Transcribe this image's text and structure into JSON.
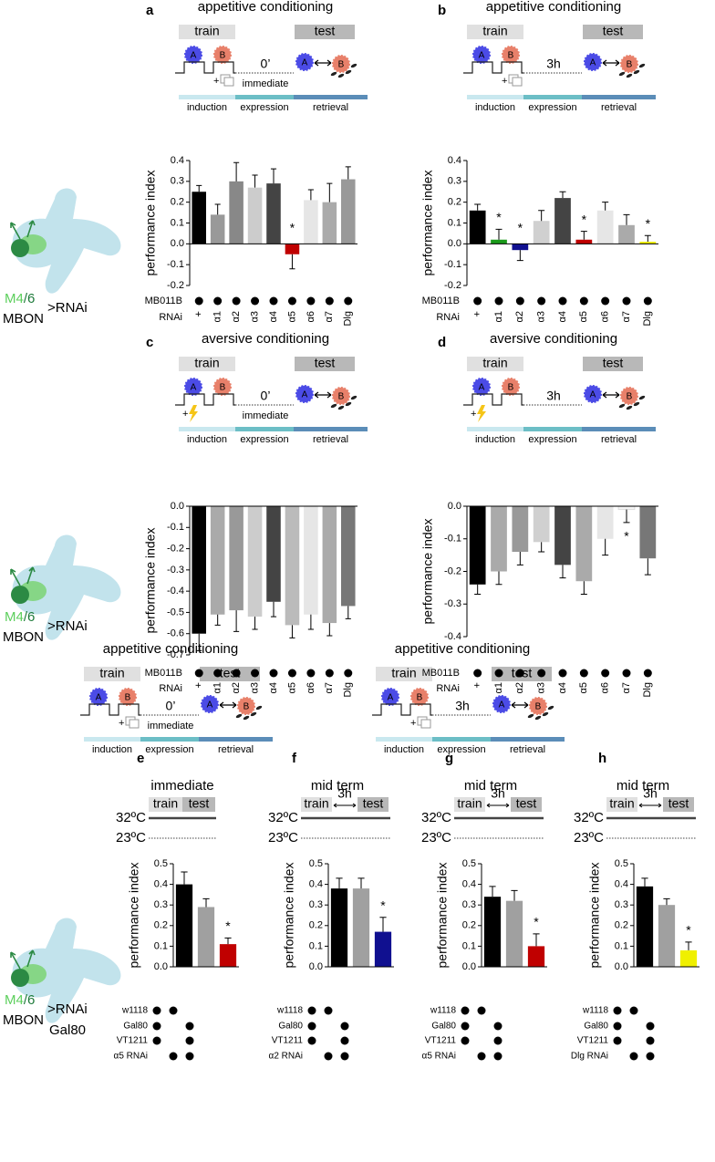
{
  "protocols": [
    {
      "title": "appetitive conditioning",
      "train": "train",
      "test": "test",
      "odor_a": "A",
      "odor_b": "B",
      "plus": "+",
      "delay": "0’",
      "timing": "immediate",
      "shock": false,
      "phases": [
        "induction",
        "expression",
        "retrieval"
      ]
    },
    {
      "title": "appetitive conditioning",
      "train": "train",
      "test": "test",
      "odor_a": "A",
      "odor_b": "B",
      "plus": "+",
      "delay": "3h",
      "shock": false,
      "phases": [
        "induction",
        "expression",
        "retrieval"
      ]
    },
    {
      "title": "aversive conditioning",
      "train": "train",
      "test": "test",
      "odor_a": "A",
      "odor_b": "B",
      "plus": "+",
      "delay": "0’",
      "timing": "immediate",
      "shock": true,
      "phases": [
        "induction",
        "expression",
        "retrieval"
      ]
    },
    {
      "title": "aversive conditioning",
      "train": "train",
      "test": "test",
      "odor_a": "A",
      "odor_b": "B",
      "plus": "+",
      "delay": "3h",
      "shock": true,
      "phases": [
        "induction",
        "expression",
        "retrieval"
      ]
    },
    {
      "title": "appetitive conditioning",
      "train": "train",
      "test": "test",
      "odor_a": "A",
      "odor_b": "B",
      "plus": "+",
      "delay": "0’",
      "timing": "immediate",
      "shock": false,
      "phases": [
        "induction",
        "expression",
        "retrieval"
      ]
    },
    {
      "title": "appetitive conditioning",
      "train": "train",
      "test": "test",
      "odor_a": "A",
      "odor_b": "B",
      "plus": "+",
      "delay": "3h",
      "shock": false,
      "phases": [
        "induction",
        "expression",
        "retrieval"
      ]
    }
  ],
  "mbon_labels": [
    {
      "m": "M4",
      "n": "/6",
      "mbon": "MBON",
      "driver": ">RNAi"
    },
    {
      "m": "M4",
      "n": "/6",
      "mbon": "MBON",
      "driver": ">RNAi"
    },
    {
      "m": "M4",
      "n": "/6",
      "mbon": "MBON",
      "driver": ">RNAi",
      "extra": "Gal80"
    }
  ],
  "chart_data": [
    {
      "type": "bar",
      "label": "a",
      "ylabel": "performance index",
      "marker": "*",
      "rnai_label": "RNAi",
      "categories": [
        "+",
        "α1",
        "α2",
        "α3",
        "α4",
        "α5",
        "α6",
        "α7",
        "Dlg"
      ],
      "values": [
        0.25,
        0.14,
        0.3,
        0.27,
        0.29,
        -0.05,
        0.21,
        0.2,
        0.31
      ],
      "errors": [
        0.03,
        0.05,
        0.09,
        0.06,
        0.07,
        0.07,
        0.05,
        0.09,
        0.06
      ],
      "colors": [
        "#000000",
        "#999999",
        "#888888",
        "#cccccc",
        "#444444",
        "#c00000",
        "#e6e6e6",
        "#aaaaaa",
        "#999999"
      ],
      "significant": [
        false,
        false,
        false,
        false,
        false,
        true,
        false,
        false,
        false
      ],
      "ylim": [
        -0.2,
        0.4
      ],
      "yticks": [
        0.4,
        0.3,
        0.2,
        0.1,
        {
          "value": 0,
          "label": "0.0"
        },
        -0.1,
        -0.2
      ],
      "genotype_rows": [
        {
          "label": "MB011B",
          "dots": [
            true,
            true,
            true,
            true,
            true,
            true,
            true,
            true,
            true
          ]
        }
      ]
    },
    {
      "type": "bar",
      "label": "b",
      "ylabel": "performance index",
      "marker": "*",
      "rnai_label": "RNAi",
      "categories": [
        "+",
        "α1",
        "α2",
        "α3",
        "α4",
        "α5",
        "α6",
        "α7",
        "Dlg"
      ],
      "values": [
        0.16,
        0.02,
        -0.03,
        0.11,
        0.22,
        0.02,
        0.16,
        0.09,
        0.01
      ],
      "errors": [
        0.03,
        0.05,
        0.05,
        0.05,
        0.03,
        0.04,
        0.04,
        0.05,
        0.03
      ],
      "colors": [
        "#000000",
        "#1a9a1a",
        "#101090",
        "#d0d0d0",
        "#444444",
        "#c00000",
        "#e6e6e6",
        "#aaaaaa",
        "#f0f000"
      ],
      "significant": [
        false,
        true,
        true,
        false,
        false,
        true,
        false,
        false,
        true
      ],
      "ylim": [
        -0.2,
        0.4
      ],
      "yticks": [
        0.4,
        0.3,
        0.2,
        0.1,
        {
          "value": 0,
          "label": "0.0"
        },
        -0.1,
        -0.2
      ],
      "genotype_rows": [
        {
          "label": "MB011B",
          "dots": [
            true,
            true,
            true,
            true,
            true,
            true,
            true,
            true,
            true
          ]
        }
      ]
    },
    {
      "type": "bar",
      "label": "c",
      "ylabel": "performance index",
      "marker": "*",
      "rnai_label": "RNAi",
      "categories": [
        "+",
        "α1",
        "α2",
        "α3",
        "α4",
        "α5",
        "α6",
        "α7",
        "Dlg"
      ],
      "values": [
        -0.6,
        -0.51,
        -0.49,
        -0.52,
        -0.45,
        -0.56,
        -0.51,
        -0.55,
        -0.47
      ],
      "errors": [
        0.08,
        0.05,
        0.1,
        0.06,
        0.07,
        0.06,
        0.07,
        0.06,
        0.06
      ],
      "colors": [
        "#000000",
        "#aaaaaa",
        "#999999",
        "#cccccc",
        "#444444",
        "#bbbbbb",
        "#e6e6e6",
        "#aaaaaa",
        "#777777"
      ],
      "significant": [
        false,
        false,
        false,
        false,
        false,
        false,
        false,
        false,
        false
      ],
      "ylim": [
        -0.7,
        0
      ],
      "yticks": [
        {
          "value": 0,
          "label": "0.0"
        },
        -0.1,
        -0.2,
        -0.3,
        -0.4,
        -0.5,
        -0.6,
        -0.7
      ],
      "genotype_rows": [
        {
          "label": "MB011B",
          "dots": [
            true,
            true,
            true,
            true,
            true,
            true,
            true,
            true,
            true
          ]
        }
      ]
    },
    {
      "type": "bar",
      "label": "d",
      "ylabel": "performance index",
      "marker": "*",
      "rnai_label": "RNAi",
      "categories": [
        "+",
        "α1",
        "α2",
        "α3",
        "α4",
        "α5",
        "α6",
        "α7",
        "Dlg"
      ],
      "values": [
        -0.24,
        -0.2,
        -0.14,
        -0.11,
        -0.18,
        -0.23,
        -0.1,
        -0.01,
        -0.16
      ],
      "errors": [
        0.03,
        0.04,
        0.04,
        0.03,
        0.04,
        0.04,
        0.05,
        0.04,
        0.05
      ],
      "colors": [
        "#000000",
        "#aaaaaa",
        "#999999",
        "#d0d0d0",
        "#444444",
        "#aaaaaa",
        "#e6e6e6",
        "#f4f4f4",
        "#777777"
      ],
      "significant": [
        false,
        false,
        false,
        false,
        false,
        false,
        false,
        true,
        false
      ],
      "ylim": [
        -0.4,
        0
      ],
      "yticks": [
        {
          "value": 0,
          "label": "0.0"
        },
        -0.1,
        -0.2,
        -0.3,
        -0.4
      ],
      "genotype_rows": [
        {
          "label": "MB011B",
          "dots": [
            true,
            true,
            true,
            true,
            true,
            true,
            true,
            true,
            true
          ]
        }
      ]
    },
    {
      "type": "bar",
      "label": "e",
      "subtitle": "immediate",
      "ylabel": "performance index",
      "marker": "*",
      "temperature": {
        "train": "train",
        "test": "test",
        "high": "32ºC",
        "low": "23ºC"
      },
      "values": [
        0.4,
        0.29,
        0.11
      ],
      "errors": [
        0.06,
        0.04,
        0.03
      ],
      "colors": [
        "#000000",
        "#a0a0a0",
        "#c00000"
      ],
      "significant": [
        false,
        false,
        true
      ],
      "ylim": [
        0,
        0.5
      ],
      "yticks": [
        {
          "value": 0,
          "label": "0.0"
        },
        0.1,
        0.2,
        0.3,
        0.4,
        0.5
      ],
      "genotype_rows": [
        {
          "label": "w1118",
          "dots": [
            true,
            true,
            false
          ]
        },
        {
          "label": "Gal80",
          "dots": [
            true,
            false,
            true
          ]
        },
        {
          "label": "VT1211",
          "dots": [
            true,
            false,
            true
          ]
        },
        {
          "label": "α5 RNAi",
          "dots": [
            false,
            true,
            true
          ]
        }
      ]
    },
    {
      "type": "bar",
      "label": "f",
      "subtitle": "mid term",
      "ylabel": "performance index",
      "marker": "*",
      "temperature": {
        "train": "train",
        "test": "test",
        "interval": "3h",
        "high": "32ºC",
        "low": "23ºC"
      },
      "values": [
        0.38,
        0.38,
        0.17
      ],
      "errors": [
        0.05,
        0.05,
        0.07
      ],
      "colors": [
        "#000000",
        "#a0a0a0",
        "#101090"
      ],
      "significant": [
        false,
        false,
        true
      ],
      "ylim": [
        0,
        0.5
      ],
      "yticks": [
        {
          "value": 0,
          "label": "0.0"
        },
        0.1,
        0.2,
        0.3,
        0.4,
        0.5
      ],
      "genotype_rows": [
        {
          "label": "w1118",
          "dots": [
            true,
            true,
            false
          ]
        },
        {
          "label": "Gal80",
          "dots": [
            true,
            false,
            true
          ]
        },
        {
          "label": "VT1211",
          "dots": [
            true,
            false,
            true
          ]
        },
        {
          "label": "α2 RNAi",
          "dots": [
            false,
            true,
            true
          ]
        }
      ]
    },
    {
      "type": "bar",
      "label": "g",
      "subtitle": "mid term",
      "ylabel": "performance index",
      "marker": "*",
      "temperature": {
        "train": "train",
        "test": "test",
        "interval": "3h",
        "high": "32ºC",
        "low": "23ºC"
      },
      "values": [
        0.34,
        0.32,
        0.1
      ],
      "errors": [
        0.05,
        0.05,
        0.06
      ],
      "colors": [
        "#000000",
        "#a0a0a0",
        "#c00000"
      ],
      "significant": [
        false,
        false,
        true
      ],
      "ylim": [
        0,
        0.5
      ],
      "yticks": [
        {
          "value": 0,
          "label": "0.0"
        },
        0.1,
        0.2,
        0.3,
        0.4,
        0.5
      ],
      "genotype_rows": [
        {
          "label": "w1118",
          "dots": [
            true,
            true,
            false
          ]
        },
        {
          "label": "Gal80",
          "dots": [
            true,
            false,
            true
          ]
        },
        {
          "label": "VT1211",
          "dots": [
            true,
            false,
            true
          ]
        },
        {
          "label": "α5 RNAi",
          "dots": [
            false,
            true,
            true
          ]
        }
      ]
    },
    {
      "type": "bar",
      "label": "h",
      "subtitle": "mid term",
      "ylabel": "performance index",
      "marker": "*",
      "temperature": {
        "train": "train",
        "test": "test",
        "interval": "3h",
        "high": "32ºC",
        "low": "23ºC"
      },
      "values": [
        0.39,
        0.3,
        0.08
      ],
      "errors": [
        0.04,
        0.03,
        0.04
      ],
      "colors": [
        "#000000",
        "#a0a0a0",
        "#f0f000"
      ],
      "significant": [
        false,
        false,
        true
      ],
      "ylim": [
        0,
        0.5
      ],
      "yticks": [
        {
          "value": 0,
          "label": "0.0"
        },
        0.1,
        0.2,
        0.3,
        0.4,
        0.5
      ],
      "genotype_rows": [
        {
          "label": "w1118",
          "dots": [
            true,
            true,
            false
          ]
        },
        {
          "label": "Gal80",
          "dots": [
            true,
            false,
            true
          ]
        },
        {
          "label": "VT1211",
          "dots": [
            true,
            false,
            true
          ]
        },
        {
          "label": "Dlg RNAi",
          "dots": [
            false,
            true,
            true
          ]
        }
      ]
    }
  ]
}
